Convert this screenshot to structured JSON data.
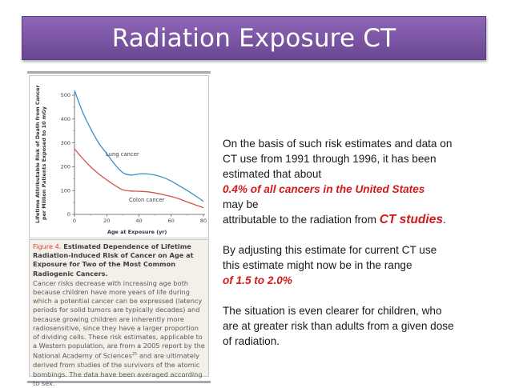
{
  "slide": {
    "title": "Radiation Exposure CT",
    "title_bar_color": "#7b55a3"
  },
  "figure": {
    "caption_number": "Figure 4.",
    "caption_title": "Estimated Dependence of Lifetime Radiation-Induced Risk of Cancer on Age at Exposure for Two of the Most Common Radiogenic Cancers.",
    "caption_body": "Cancer risks decrease with increasing age both because children have more years of life during which a potential cancer can be expressed (latency periods for solid tumors are typically decades) and because growing children are inherently more radiosensitive, since they have a larger proportion of dividing cells. These risk estimates, applicable to a Western population, are from a 2005 report by the National Academy of Sciences",
    "caption_ref": "25",
    "caption_body_end": " and are ultimately derived from studies of the survivors of the atomic bombings. The data have been averaged according to sex."
  },
  "chart_data": {
    "type": "line",
    "title": "",
    "xlabel": "Age at Exposure (yr)",
    "ylabel": "Lifetime Attributable Risk of Death from Cancer per Million Patients Exposed to 10 mGy",
    "ylabel_line1": "Lifetime Attributable Risk of Death from Cancer",
    "ylabel_line2": "per Million Patients Exposed to 10 mGy",
    "xlim": [
      0,
      80
    ],
    "ylim": [
      0,
      500
    ],
    "x_ticks": [
      "0",
      "20",
      "40",
      "60",
      "80"
    ],
    "y_ticks": [
      "0",
      "100",
      "200",
      "300",
      "400",
      "500"
    ],
    "grid": false,
    "legend": "inline labels",
    "x": [
      0,
      5,
      10,
      15,
      20,
      25,
      30,
      35,
      40,
      45,
      50,
      55,
      60,
      65,
      70,
      75,
      80
    ],
    "series": [
      {
        "name": "Lung cancer",
        "color": "#3a8fc4",
        "values": [
          520,
          430,
          360,
          300,
          255,
          210,
          175,
          165,
          170,
          170,
          165,
          155,
          140,
          120,
          100,
          78,
          55
        ]
      },
      {
        "name": "Colon cancer",
        "color": "#d0564a",
        "values": [
          275,
          235,
          200,
          170,
          145,
          122,
          103,
          98,
          97,
          95,
          90,
          83,
          75,
          65,
          52,
          40,
          28
        ]
      }
    ],
    "annotations": [
      "Lung cancer",
      "Colon cancer"
    ]
  },
  "text_panel": {
    "para1_line1": "On the basis of such risk estimates and data on",
    "para1_line2": "CT use from 1991 through 1996, it has been",
    "para1_line3": "estimated that about",
    "para1_highlight": "0.4% of all cancers in the United States",
    "para1_line5": "may be",
    "para1_line6_prefix": "attributable to the radiation from ",
    "para1_line6_highlight": "CT studies",
    "para1_line6_suffix": ".",
    "para2_line1": "By adjusting this estimate for current CT use",
    "para2_line2": "this estimate might now be in the range",
    "para2_highlight": "of 1.5 to 2.0%",
    "para3_line1": "The situation is even clearer for children, who",
    "para3_line2": "are at greater risk than adults from a given dose",
    "para3_line3": "of radiation.",
    "highlight_color": "#d01a1a"
  }
}
